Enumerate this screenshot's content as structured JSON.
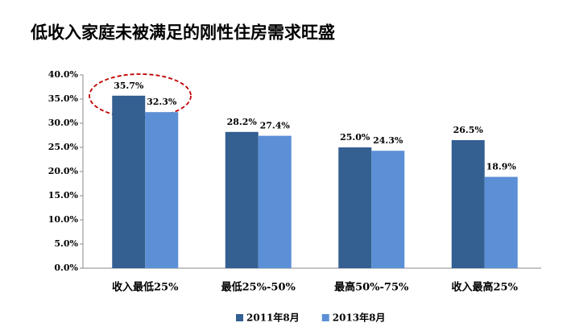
{
  "chart_data": {
    "type": "bar",
    "title": "低收入家庭未被满足的刚性住房需求旺盛",
    "categories": [
      "收入最低25%",
      "最低25%-50%",
      "最高50%-75%",
      "收入最高25%"
    ],
    "series": [
      {
        "name": "2011年8月",
        "color": "#335f91",
        "values": [
          35.7,
          28.2,
          25.0,
          26.5
        ],
        "value_labels": [
          "35.7%",
          "28.2%",
          "25.0%",
          "26.5%"
        ]
      },
      {
        "name": "2013年8月",
        "color": "#5b8fd6",
        "values": [
          32.3,
          27.4,
          24.3,
          18.9
        ],
        "value_labels": [
          "32.3%",
          "27.4%",
          "24.3%",
          "18.9%"
        ]
      }
    ],
    "ylim": [
      0,
      40
    ],
    "yticks": [
      {
        "value": 0,
        "label": "0.0%"
      },
      {
        "value": 5,
        "label": "5.0%"
      },
      {
        "value": 10,
        "label": "10.0%"
      },
      {
        "value": 15,
        "label": "15.0%"
      },
      {
        "value": 20,
        "label": "20.0%"
      },
      {
        "value": 25,
        "label": "25.0%"
      },
      {
        "value": 30,
        "label": "30.0%"
      },
      {
        "value": 35,
        "label": "35.0%"
      },
      {
        "value": 40,
        "label": "40.0%"
      }
    ],
    "grid": false,
    "legend": "bottom"
  }
}
